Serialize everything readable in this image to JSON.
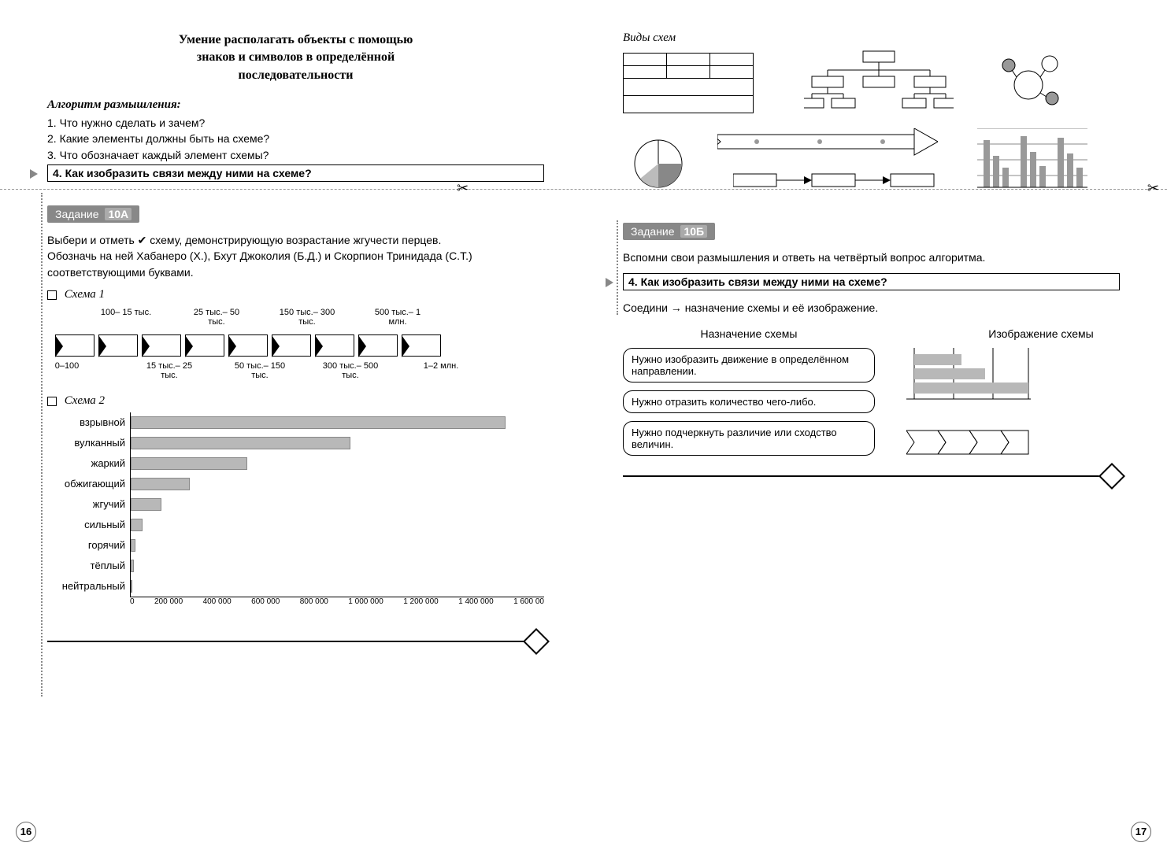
{
  "left": {
    "title_line1": "Умение располагать объекты с помощью",
    "title_line2": "знаков и символов в определённой",
    "title_line3": "последовательности",
    "algo_header": "Алгоритм размышления:",
    "algo": [
      "1. Что нужно сделать и зачем?",
      "2. Какие элементы должны быть на схеме?",
      "3. Что обозначает каждый элемент схемы?"
    ],
    "algo_boxed": "4. Как изобразить связи между ними на схеме?",
    "task_label": "Задание",
    "task_num": "10А",
    "task_body1": "Выбери и отметь ✔ схему, демонстрирующую возрастание жгучести перцев.",
    "task_body2": "Обозначь на ней Хабанеро (X.), Бхут Джоколия (Б.Д.) и Скорпион Тринидада (С.Т.) соответствующими буквами.",
    "scheme1_label": "Схема 1",
    "scheme2_label": "Схема 2",
    "chain_top_labels": [
      "100–\n15 тыс.",
      "25 тыс.–\n50 тыс.",
      "150 тыс.–\n300 тыс.",
      "500 тыс.–\n1 млн."
    ],
    "chain_bot_labels": [
      "0–100",
      "15 тыс.–\n25 тыс.",
      "50 тыс.–\n150 тыс.",
      "300 тыс.–\n500 тыс.",
      "1–2 млн."
    ],
    "barchart": {
      "type": "bar",
      "categories": [
        "взрывной",
        "вулканный",
        "жаркий",
        "обжигающий",
        "жгучий",
        "сильный",
        "горячий",
        "тёплый",
        "нейтральный"
      ],
      "values": [
        1450000,
        850000,
        450000,
        230000,
        120000,
        45000,
        18000,
        12000,
        0
      ],
      "xlim": [
        0,
        1600000
      ],
      "xticks": [
        "0",
        "200 000",
        "400 000",
        "600 000",
        "800 000",
        "1 000 000",
        "1 200 000",
        "1 400 000",
        "1 600 00"
      ],
      "bar_color": "#b8b8b8",
      "bar_border": "#888888"
    },
    "page_num": "16"
  },
  "right": {
    "diag_title": "Виды схем",
    "task_label": "Задание",
    "task_num": "10Б",
    "task_body": "Вспомни свои размышления и ответь на четвёртый вопрос алгоритма.",
    "boxed": "4. Как изобразить связи между ними на схеме?",
    "connect_text": "Соедини → назначение схемы и её изображение.",
    "col1_header": "Назначение схемы",
    "col2_header": "Изображение схемы",
    "purposes": [
      "Нужно изобразить движение в определённом направлении.",
      "Нужно отразить количество чего-либо.",
      "Нужно подчеркнуть различие или сходство величин."
    ],
    "mini_bar_color": "#b8b8b8",
    "page_num": "17"
  },
  "colors": {
    "badge_bg": "#888888",
    "badge_num_bg": "#aaaaaa",
    "bar_fill": "#b8b8b8",
    "cut_line": "#999999"
  }
}
